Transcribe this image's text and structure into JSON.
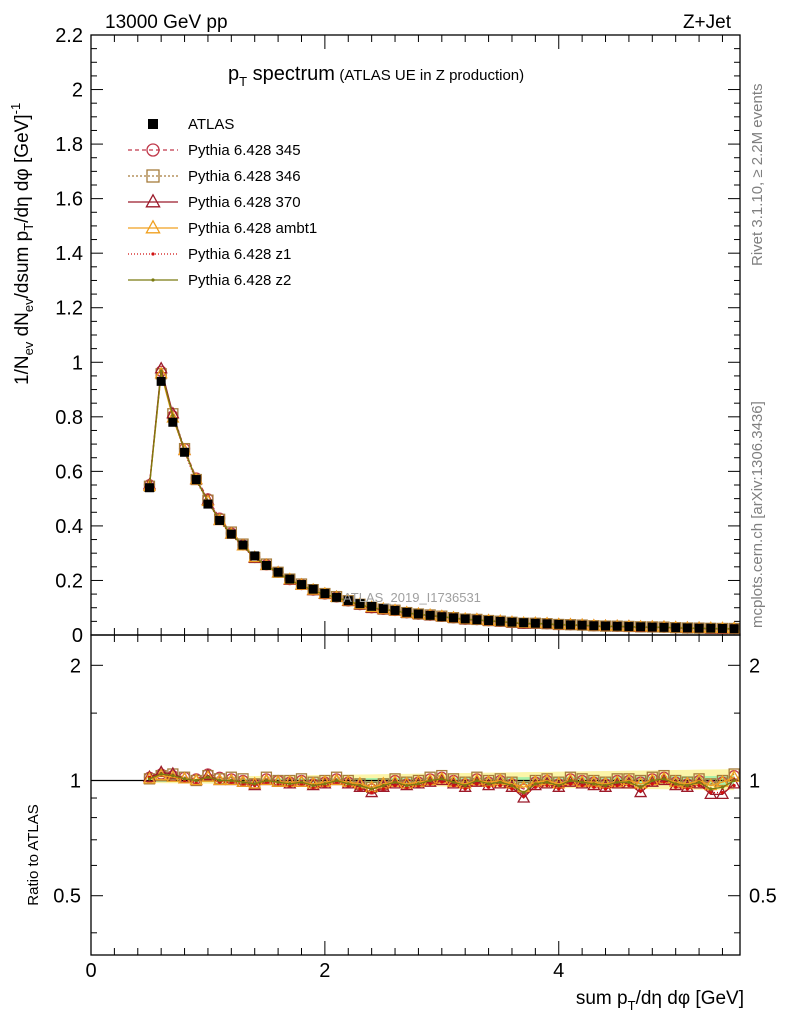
{
  "header": {
    "left": "13000 GeV pp",
    "right": "Z+Jet"
  },
  "plot_title": {
    "main": "p_T spectrum",
    "sub": "(ATLAS UE in Z production)"
  },
  "side_labels": {
    "rivet": "Rivet 3.1.10, ≥ 2.2M events",
    "mcplots": "mcplots.cern.ch [arXiv:1306.3436]"
  },
  "watermark": "ATLAS_2019_I1736531",
  "axes": {
    "ylabel_top": "1/N_ev dN_ev/dsum p_T/dη dφ [GeV]^-1",
    "ylabel_bottom": "Ratio to ATLAS",
    "xlabel": "sum p_T/dη dφ [GeV]",
    "x_ticks": [
      "0",
      "2",
      "4"
    ],
    "y_ticks_top": [
      "0",
      "0.2",
      "0.4",
      "0.6",
      "0.8",
      "1",
      "1.2",
      "1.4",
      "1.6",
      "1.8",
      "2",
      "2.2"
    ],
    "y_ticks_bottom": [
      "0.5",
      "1",
      "2"
    ]
  },
  "legend": [
    {
      "name": "ATLAS",
      "color": "#000000",
      "marker": "filled-square"
    },
    {
      "name": "Pythia 6.428 345",
      "color": "#c0384a",
      "marker": "open-circle"
    },
    {
      "name": "Pythia 6.428 346",
      "color": "#a67c3c",
      "marker": "open-square"
    },
    {
      "name": "Pythia 6.428 370",
      "color": "#9b1a2a",
      "marker": "open-triangle"
    },
    {
      "name": "Pythia 6.428 ambt1",
      "color": "#f0a020",
      "marker": "open-triangle"
    },
    {
      "name": "Pythia 6.428 z1",
      "color": "#d01010",
      "marker": "dot"
    },
    {
      "name": "Pythia 6.428 z2",
      "color": "#7a7a10",
      "marker": "dot"
    }
  ],
  "chart_data": {
    "type": "line",
    "title": "p_T spectrum (ATLAS UE in Z production)",
    "xlabel": "sum p_T/dη dφ [GeV]",
    "ylabel": "1/N_ev dN_ev/dsum p_T/dη dφ [GeV]^-1",
    "xlim": [
      0,
      5.55
    ],
    "ylim": [
      0,
      2.2
    ],
    "ratio_ylim": [
      0.35,
      2.4
    ],
    "ratio_ylabel": "Ratio to ATLAS",
    "x": [
      0.5,
      0.6,
      0.7,
      0.8,
      0.9,
      1.0,
      1.1,
      1.2,
      1.3,
      1.4,
      1.5,
      1.6,
      1.7,
      1.8,
      1.9,
      2.0,
      2.1,
      2.2,
      2.3,
      2.4,
      2.5,
      2.6,
      2.7,
      2.8,
      2.9,
      3.0,
      3.1,
      3.2,
      3.3,
      3.4,
      3.5,
      3.6,
      3.7,
      3.8,
      3.9,
      4.0,
      4.1,
      4.2,
      4.3,
      4.4,
      4.5,
      4.6,
      4.7,
      4.8,
      4.9,
      5.0,
      5.1,
      5.2,
      5.3,
      5.4,
      5.5
    ],
    "series": [
      {
        "name": "ATLAS",
        "values": [
          0.54,
          0.93,
          0.78,
          0.67,
          0.57,
          0.48,
          0.42,
          0.37,
          0.33,
          0.29,
          0.255,
          0.23,
          0.205,
          0.185,
          0.168,
          0.152,
          0.138,
          0.126,
          0.115,
          0.105,
          0.097,
          0.09,
          0.083,
          0.077,
          0.072,
          0.067,
          0.063,
          0.059,
          0.056,
          0.053,
          0.05,
          0.047,
          0.045,
          0.043,
          0.041,
          0.039,
          0.037,
          0.036,
          0.034,
          0.033,
          0.032,
          0.031,
          0.03,
          0.029,
          0.028,
          0.027,
          0.026,
          0.025,
          0.025,
          0.024,
          0.023
        ]
      },
      {
        "name": "Pythia 6.428 345",
        "ratio": [
          1.02,
          1.04,
          1.03,
          1.02,
          1.01,
          1.04,
          1.02,
          1.01,
          1.0,
          0.98,
          1.01,
          1.0,
          0.99,
          1.0,
          0.98,
          0.99,
          1.01,
          0.99,
          0.97,
          0.95,
          0.97,
          1.0,
          0.98,
          0.99,
          1.01,
          1.02,
          1.0,
          0.98,
          1.01,
          0.99,
          1.0,
          0.98,
          0.95,
          0.99,
          1.0,
          0.98,
          1.01,
          1.0,
          0.99,
          0.98,
          1.0,
          1.0,
          0.99,
          1.01,
          1.02,
          0.99,
          0.98,
          1.0,
          0.97,
          0.99,
          1.03
        ]
      },
      {
        "name": "Pythia 6.428 346",
        "ratio": [
          1.01,
          1.03,
          1.04,
          1.02,
          1.0,
          1.03,
          1.01,
          1.02,
          1.01,
          0.98,
          1.02,
          1.0,
          1.0,
          1.01,
          0.99,
          1.0,
          1.02,
          1.0,
          0.98,
          0.96,
          0.98,
          1.01,
          0.99,
          1.0,
          1.02,
          1.03,
          1.01,
          0.99,
          1.02,
          1.0,
          1.01,
          0.99,
          0.96,
          1.0,
          1.01,
          0.99,
          1.02,
          1.01,
          1.0,
          0.99,
          1.01,
          1.01,
          1.0,
          1.02,
          1.03,
          1.0,
          0.99,
          1.01,
          0.98,
          1.0,
          1.04
        ]
      },
      {
        "name": "Pythia 6.428 370",
        "ratio": [
          1.02,
          1.05,
          1.04,
          1.01,
          1.0,
          1.03,
          1.0,
          1.0,
          0.99,
          0.97,
          1.0,
          0.99,
          0.98,
          0.99,
          0.97,
          0.98,
          1.0,
          0.98,
          0.96,
          0.93,
          0.96,
          0.98,
          0.97,
          0.98,
          0.99,
          1.0,
          0.98,
          0.96,
          0.99,
          0.97,
          0.98,
          0.96,
          0.9,
          0.97,
          0.98,
          0.96,
          0.99,
          0.98,
          0.97,
          0.96,
          0.98,
          0.98,
          0.93,
          0.99,
          1.0,
          0.97,
          0.96,
          0.98,
          0.92,
          0.92,
          0.98
        ]
      },
      {
        "name": "Pythia 6.428 ambt1",
        "ratio": [
          1.01,
          1.03,
          1.02,
          1.01,
          1.0,
          1.02,
          1.0,
          1.0,
          0.99,
          0.98,
          1.0,
          0.99,
          0.99,
          0.99,
          0.98,
          0.99,
          1.0,
          0.99,
          0.98,
          0.96,
          0.98,
          0.99,
          0.98,
          0.99,
          1.0,
          1.01,
          0.99,
          0.98,
          1.0,
          0.99,
          1.0,
          0.98,
          0.96,
          0.99,
          1.0,
          0.98,
          1.0,
          0.99,
          0.99,
          0.98,
          0.99,
          1.0,
          0.98,
          1.0,
          1.01,
          0.99,
          0.98,
          1.0,
          0.97,
          0.99,
          1.02
        ]
      },
      {
        "name": "Pythia 6.428 z1",
        "ratio": [
          1.02,
          1.04,
          1.03,
          1.0,
          0.99,
          1.02,
          0.99,
          0.99,
          0.98,
          0.97,
          0.99,
          0.98,
          0.97,
          0.98,
          0.96,
          0.97,
          0.99,
          0.97,
          0.95,
          0.93,
          0.95,
          0.97,
          0.96,
          0.97,
          0.98,
          0.99,
          0.97,
          0.95,
          0.98,
          0.96,
          0.97,
          0.95,
          0.91,
          0.96,
          0.97,
          0.95,
          0.98,
          0.97,
          0.96,
          0.95,
          0.97,
          0.97,
          0.94,
          0.98,
          0.99,
          0.96,
          0.95,
          0.97,
          0.93,
          0.93,
          0.97
        ]
      },
      {
        "name": "Pythia 6.428 z2",
        "ratio": [
          1.01,
          1.04,
          1.03,
          1.01,
          1.0,
          1.02,
          1.0,
          1.0,
          0.99,
          0.98,
          1.0,
          0.99,
          0.98,
          0.99,
          0.97,
          0.98,
          1.0,
          0.98,
          0.97,
          0.95,
          0.97,
          0.99,
          0.97,
          0.98,
          1.0,
          1.01,
          0.99,
          0.97,
          1.0,
          0.98,
          0.99,
          0.97,
          0.93,
          0.98,
          0.99,
          0.97,
          1.0,
          0.99,
          0.98,
          0.97,
          0.99,
          0.99,
          0.96,
          1.0,
          1.01,
          0.98,
          0.97,
          0.99,
          0.95,
          0.96,
          1.0
        ]
      }
    ]
  }
}
